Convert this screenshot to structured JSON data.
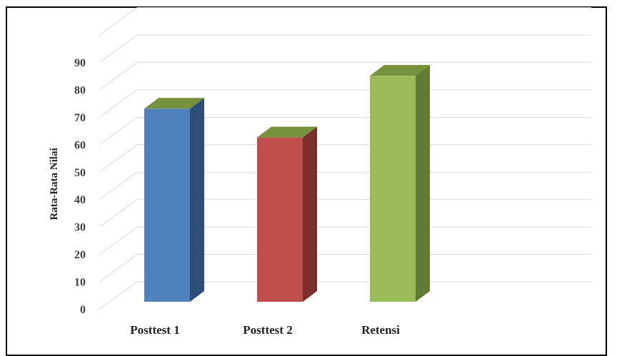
{
  "chart_data": {
    "type": "bar",
    "style": "3d-column",
    "categories": [
      "Posttest 1",
      "Posttest 2",
      "Retensi"
    ],
    "values": [
      72.5,
      62,
      84.5
    ],
    "ylabel": "Rata-Rata  Nilai",
    "xlabel": "",
    "ylim": [
      0,
      90
    ],
    "yticks": [
      0,
      10,
      20,
      30,
      40,
      50,
      60,
      70,
      80,
      90
    ],
    "grid": true,
    "legend": "none",
    "bar_colors": [
      "#4F81BD",
      "#C0504D",
      "#9BBB59"
    ],
    "bar_side_colors": [
      "#2E4E7A",
      "#7A2E2C",
      "#637A34"
    ],
    "bar_top_color": "#76923C"
  }
}
